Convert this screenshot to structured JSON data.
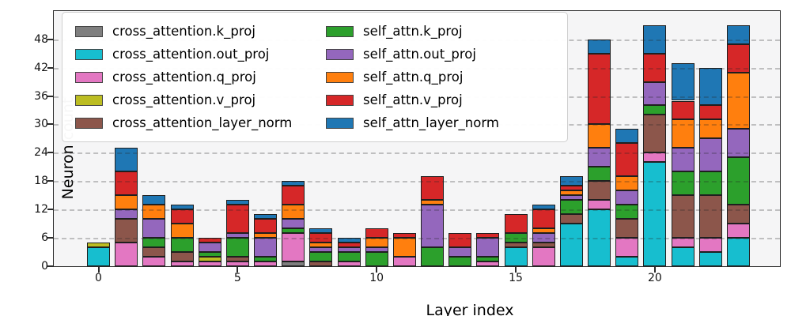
{
  "figure": {
    "xlabel": "Layer index",
    "ylabel": "Neuron count",
    "plot_background": "#f5f5f6",
    "grid_color": "rgba(40,40,40,0.26)",
    "bar_edge_color": "#1f1f1f"
  },
  "legend": {
    "entries": [
      {
        "label": "cross_attention.k_proj",
        "color": "#7f7f7f"
      },
      {
        "label": "cross_attention.out_proj",
        "color": "#17becf"
      },
      {
        "label": "cross_attention.q_proj",
        "color": "#e377c2"
      },
      {
        "label": "cross_attention.v_proj",
        "color": "#bcbd22"
      },
      {
        "label": "cross_attention_layer_norm",
        "color": "#8c564b"
      },
      {
        "label": "self_attn.k_proj",
        "color": "#2ca02c"
      },
      {
        "label": "self_attn.out_proj",
        "color": "#9467bd"
      },
      {
        "label": "self_attn.q_proj",
        "color": "#ff7f0e"
      },
      {
        "label": "self_attn.v_proj",
        "color": "#d62728"
      },
      {
        "label": "self_attn_layer_norm",
        "color": "#1f77b4"
      }
    ]
  },
  "chart_data": {
    "type": "bar",
    "stacked": true,
    "title": "",
    "xlabel": "Layer index",
    "ylabel": "Neuron count",
    "categories": [
      0,
      1,
      2,
      3,
      4,
      5,
      6,
      7,
      8,
      9,
      10,
      11,
      12,
      13,
      14,
      15,
      16,
      17,
      18,
      19,
      20,
      21,
      22,
      23
    ],
    "x_tick_positions": [
      0,
      5,
      10,
      15,
      20
    ],
    "y_ticks": [
      0,
      6,
      12,
      18,
      24,
      30,
      36,
      42,
      48
    ],
    "ylim": [
      0,
      54
    ],
    "grid": true,
    "legend_position": "upper-left",
    "series": [
      {
        "name": "cross_attention.k_proj",
        "color": "#7f7f7f",
        "values": [
          0,
          0,
          0,
          0,
          0,
          0,
          0,
          1,
          0,
          0,
          0,
          0,
          0,
          0,
          0,
          0,
          0,
          0,
          0,
          0,
          0,
          0,
          0,
          0
        ]
      },
      {
        "name": "cross_attention.out_proj",
        "color": "#17becf",
        "values": [
          4,
          0,
          0,
          0,
          0,
          0,
          0,
          0,
          0,
          0,
          0,
          0,
          0,
          0,
          0,
          4,
          0,
          9,
          12,
          2,
          22,
          4,
          3,
          6
        ]
      },
      {
        "name": "cross_attention.q_proj",
        "color": "#e377c2",
        "values": [
          0,
          5,
          2,
          1,
          1,
          1,
          1,
          6,
          0,
          1,
          0,
          2,
          0,
          0,
          1,
          0,
          4,
          0,
          2,
          4,
          2,
          2,
          3,
          3
        ]
      },
      {
        "name": "cross_attention.v_proj",
        "color": "#bcbd22",
        "values": [
          1,
          0,
          0,
          0,
          1,
          0,
          0,
          0,
          0,
          0,
          0,
          0,
          0,
          0,
          0,
          0,
          0,
          0,
          0,
          0,
          0,
          0,
          0,
          0
        ]
      },
      {
        "name": "cross_attention_layer_norm",
        "color": "#8c564b",
        "values": [
          0,
          5,
          2,
          2,
          0,
          1,
          0,
          0,
          1,
          0,
          0,
          0,
          0,
          0,
          0,
          1,
          1,
          2,
          4,
          4,
          8,
          9,
          9,
          4
        ]
      },
      {
        "name": "self_attn.k_proj",
        "color": "#2ca02c",
        "values": [
          0,
          0,
          2,
          3,
          1,
          4,
          1,
          1,
          2,
          2,
          3,
          0,
          4,
          2,
          1,
          2,
          0,
          3,
          3,
          3,
          2,
          5,
          5,
          10
        ]
      },
      {
        "name": "self_attn.out_proj",
        "color": "#9467bd",
        "values": [
          0,
          2,
          4,
          0,
          2,
          1,
          4,
          2,
          1,
          1,
          1,
          0,
          9,
          2,
          4,
          0,
          2,
          1,
          4,
          3,
          5,
          5,
          7,
          6
        ]
      },
      {
        "name": "self_attn.q_proj",
        "color": "#ff7f0e",
        "values": [
          0,
          3,
          3,
          3,
          0,
          0,
          1,
          3,
          1,
          0,
          2,
          4,
          1,
          0,
          0,
          0,
          1,
          1,
          5,
          3,
          0,
          6,
          4,
          12
        ]
      },
      {
        "name": "self_attn.v_proj",
        "color": "#d62728",
        "values": [
          0,
          5,
          0,
          3,
          1,
          6,
          3,
          4,
          2,
          1,
          2,
          1,
          5,
          3,
          1,
          4,
          4,
          1,
          15,
          7,
          6,
          4,
          3,
          6
        ]
      },
      {
        "name": "self_attn_layer_norm",
        "color": "#1f77b4",
        "values": [
          0,
          5,
          2,
          1,
          0,
          1,
          1,
          1,
          1,
          1,
          0,
          0,
          0,
          0,
          0,
          0,
          1,
          2,
          3,
          3,
          6,
          8,
          8,
          4
        ]
      }
    ]
  }
}
